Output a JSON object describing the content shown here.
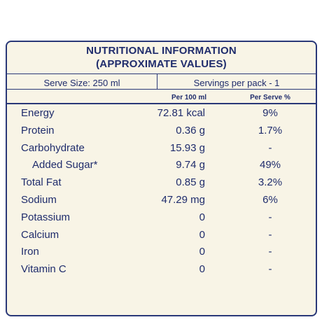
{
  "table": {
    "title": [
      "NUTRITIONAL INFORMATION",
      "(APPROXIMATE VALUES)"
    ],
    "serve_size": "Serve Size: 250 ml",
    "servings": "Servings per pack - 1",
    "columns": [
      "Per 100 ml",
      "Per Serve %"
    ],
    "rows": [
      [
        "Energy",
        "72.81 kcal",
        "9%"
      ],
      [
        "Protein",
        "0.36 g",
        "1.7%"
      ],
      [
        "Carbohydrate",
        "15.93 g",
        "-"
      ],
      [
        "Added Sugar*",
        "9.74 g",
        "49%"
      ],
      [
        "Total Fat",
        "0.85 g",
        "3.2%"
      ],
      [
        "Sodium",
        "47.29 mg",
        "6%"
      ],
      [
        "Potassium",
        "0",
        "-"
      ],
      [
        "Calcium",
        "0",
        "-"
      ],
      [
        "Iron",
        "0",
        "-"
      ],
      [
        "Vitamin C",
        "0",
        "-"
      ]
    ]
  }
}
